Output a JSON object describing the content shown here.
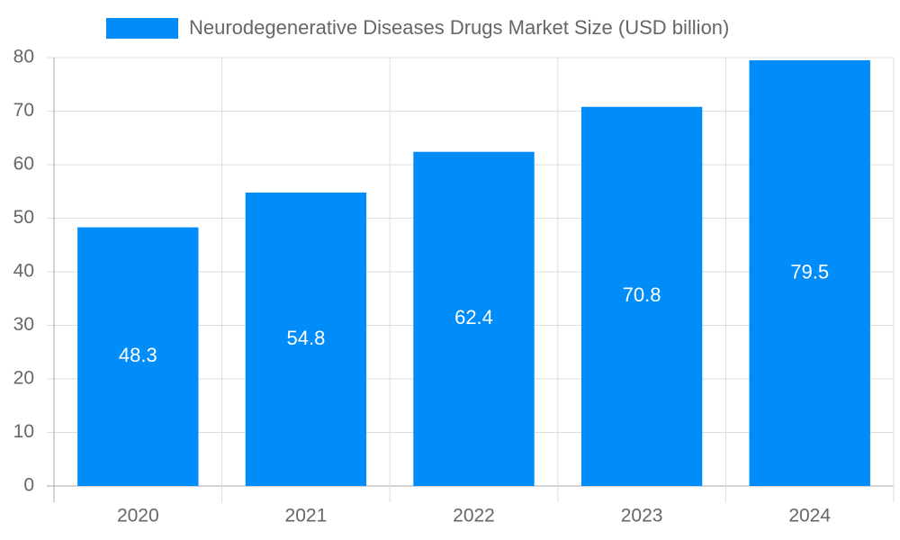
{
  "chart_data": {
    "type": "bar",
    "categories": [
      "2020",
      "2021",
      "2022",
      "2023",
      "2024"
    ],
    "series": [
      {
        "name": "Neurodegenerative Diseases Drugs Market Size (USD billion)",
        "color": "#008cf9",
        "values": [
          48.3,
          54.8,
          62.4,
          70.8,
          79.5
        ]
      }
    ],
    "ylim": [
      0,
      80
    ],
    "yticks": [
      0,
      10,
      20,
      30,
      40,
      50,
      60,
      70,
      80
    ],
    "grid": true
  }
}
